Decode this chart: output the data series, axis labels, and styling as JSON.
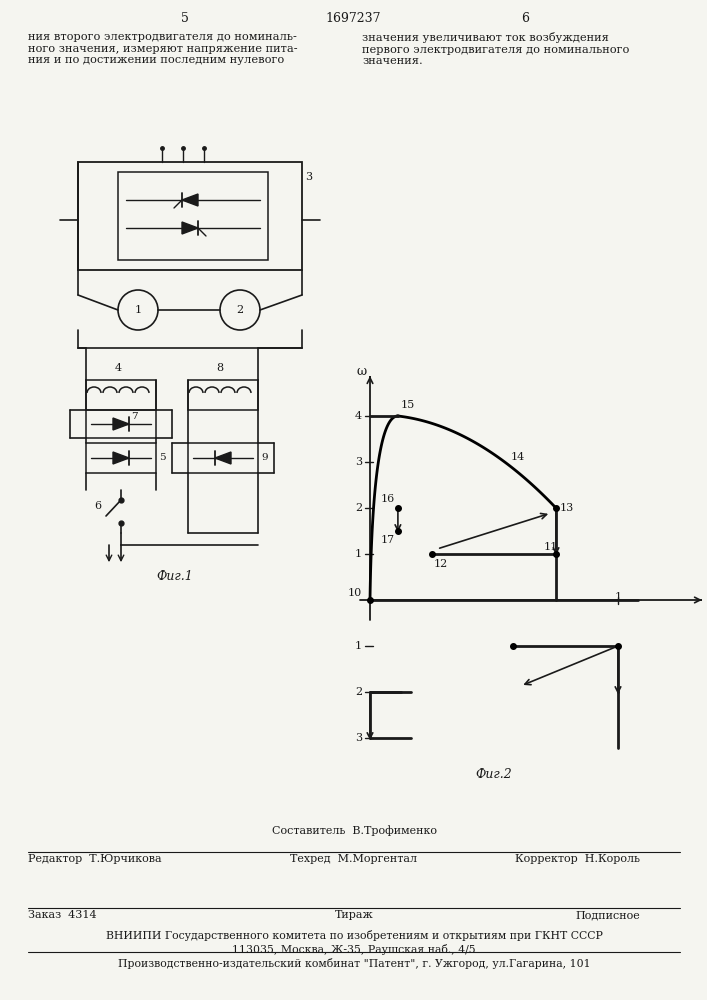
{
  "page_num_left": "5",
  "page_num_center": "1697237",
  "page_num_right": "6",
  "top_text_left": "ния второго электродвигателя до номиналь-\nного значения, измеряют напряжение пита-\nния и по достижении последним нулевого",
  "top_text_right": "значения увеличивают ток возбуждения\nпервого электродвигателя до номинального\nзначения.",
  "fig1_label": "Фиг.1",
  "fig2_label": "Фиг.2",
  "footer_sestavitel": "Составитель  В.Трофименко",
  "footer_redaktor": "Редактор  Т.Юрчикова",
  "footer_tehred": "Техред  М.Моргентал",
  "footer_korrektor": "Корректор  Н.Король",
  "footer_zakaz": "Заказ  4314",
  "footer_tirazh": "Тираж",
  "footer_podpisnoe": "Подписное",
  "footer_vniiipi": "ВНИИПИ Государственного комитета по изобретениям и открытиям при ГКНТ СССР",
  "footer_addr": "113035, Москва, Ж-35, Раушская наб., 4/5",
  "footer_patent": "Производственно-издательский комбинат \"Патент\", г. Ужгород, ул.Гагарина, 101",
  "bg_color": "#f5f5f0",
  "text_color": "#1a1a1a"
}
